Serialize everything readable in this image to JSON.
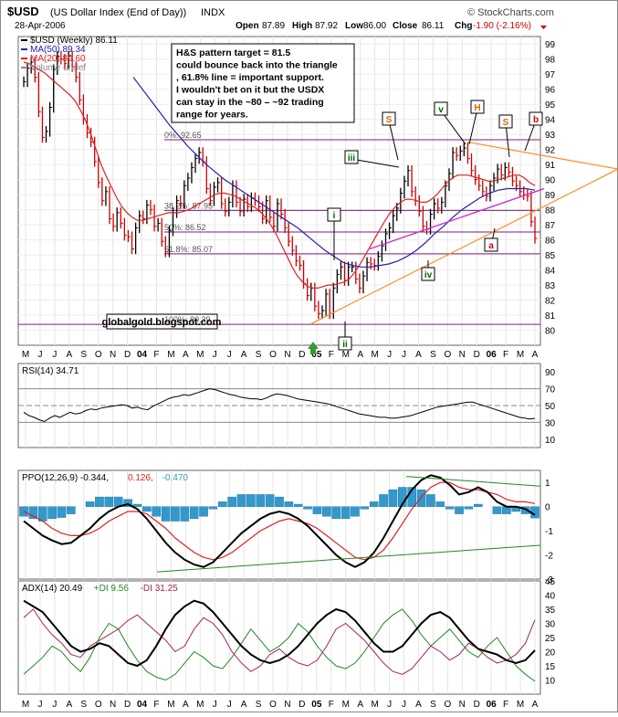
{
  "header": {
    "symbol": "$USD",
    "description": "(US Dollar Index (End of Day))",
    "exchange": "INDX",
    "date": "28-Apr-2006",
    "open_label": "Open",
    "open": "87.89",
    "high_label": "High",
    "high": "87.92",
    "low_label": "Low",
    "low": "86.00",
    "close_label": "Close",
    "close": "86.11",
    "chg_label": "Chg",
    "chg": "-1.90 (-2.16%)",
    "copyright": "© StockCharts.com"
  },
  "chart_data": [
    {
      "type": "line",
      "title": "$USD (Weekly) 86.11",
      "legend": [
        {
          "label": "$USD (Weekly) 86.11",
          "color": "#000000"
        },
        {
          "label": "MA(50) 89.34",
          "color": "#2222aa"
        },
        {
          "label": "MA(20) 89.60",
          "color": "#dd2222"
        },
        {
          "label": "Volume undef",
          "color": "#888888"
        }
      ],
      "ylim": [
        79,
        99.5
      ],
      "y_ticks": [
        80,
        81,
        82,
        83,
        84,
        85,
        86,
        87,
        88,
        89,
        90,
        91,
        92,
        93,
        94,
        95,
        96,
        97,
        98,
        99
      ],
      "x_ticks": [
        "M",
        "J",
        "J",
        "A",
        "S",
        "O",
        "N",
        "D",
        "04",
        "F",
        "M",
        "A",
        "M",
        "J",
        "J",
        "A",
        "S",
        "O",
        "N",
        "D",
        "05",
        "F",
        "M",
        "A",
        "M",
        "J",
        "J",
        "A",
        "S",
        "O",
        "N",
        "D",
        "06",
        "F",
        "M",
        "A"
      ],
      "annotation_box": [
        "H&S pattern target = 81.5",
        "could bounce back into the triangle",
        ", 61.8% line = important support.",
        "I wouldn't bet on it but the USDX",
        "can stay in the ~80 – ~92 trading",
        "range for years."
      ],
      "watermark": "globalgold.blogspot.com",
      "fib_levels": [
        {
          "label": "0%: 92.65",
          "value": 92.65
        },
        {
          "label": "38.2%: 87.95",
          "value": 87.95
        },
        {
          "label": "50%: 86.52",
          "value": 86.52
        },
        {
          "label": "61.8%: 85.07",
          "value": 85.07
        },
        {
          "label": "100%: 80.39",
          "value": 80.39
        }
      ],
      "wave_labels": [
        {
          "text": "i",
          "color": "#006600"
        },
        {
          "text": "ii",
          "color": "#006600"
        },
        {
          "text": "iii",
          "color": "#006600"
        },
        {
          "text": "iv",
          "color": "#006600"
        },
        {
          "text": "v",
          "color": "#006600"
        },
        {
          "text": "S",
          "color": "#dd6600"
        },
        {
          "text": "H",
          "color": "#dd6600"
        },
        {
          "text": "S",
          "color": "#dd6600"
        },
        {
          "text": "a",
          "color": "#cc0000"
        },
        {
          "text": "b",
          "color": "#cc0000"
        }
      ],
      "close_series": [
        96.5,
        97.4,
        97.8,
        96.8,
        94.5,
        92.8,
        93.2,
        94.8,
        97.3,
        98.2,
        98.0,
        97.7,
        98.2,
        97.5,
        96.8,
        95.3,
        94.0,
        93.1,
        92.5,
        91.2,
        89.8,
        88.6,
        89.2,
        87.4,
        86.9,
        87.8,
        87.1,
        86.3,
        86.2,
        85.4,
        86.8,
        87.6,
        87.4,
        88.3,
        88.0,
        86.9,
        87.1,
        85.9,
        85.2,
        86.6,
        87.8,
        88.6,
        88.4,
        89.6,
        90.1,
        90.8,
        91.4,
        91.8,
        91.2,
        89.4,
        88.6,
        89.5,
        89.8,
        88.4,
        87.9,
        88.5,
        89.6,
        88.5,
        87.9,
        88.7,
        88.2,
        88.8,
        88.6,
        88.2,
        87.4,
        88.6,
        87.5,
        86.9,
        88.4,
        87.7,
        86.8,
        85.9,
        85.3,
        84.6,
        84.3,
        83.1,
        82.3,
        82.8,
        81.6,
        81.1,
        81.3,
        82.4,
        81.1,
        82.8,
        83.7,
        84.2,
        83.3,
        84.2,
        84.2,
        83.4,
        82.8,
        83.6,
        84.5,
        84.4,
        84.3,
        84.9,
        85.6,
        86.4,
        86.8,
        87.6,
        88.1,
        89.1,
        89.9,
        90.6,
        89.2,
        88.6,
        87.9,
        86.9,
        86.7,
        87.7,
        88.4,
        88.1,
        88.5,
        89.6,
        90.4,
        91.8,
        91.6,
        91.9,
        92.1,
        91.4,
        90.6,
        90.0,
        89.6,
        89.2,
        88.9,
        89.6,
        90.1,
        90.7,
        90.3,
        90.8,
        90.5,
        89.9,
        89.6,
        89.2,
        89.0,
        88.9,
        87.2,
        86.1
      ],
      "ma20_series": [
        97.8,
        97.7,
        97.5,
        97.3,
        97.1,
        96.8,
        96.5,
        96.2,
        95.9,
        95.6,
        95.2,
        94.6,
        93.9,
        93.0,
        92.0,
        91.0,
        90.2,
        89.5,
        88.8,
        88.2,
        87.8,
        87.5,
        87.3,
        87.3,
        87.4,
        87.5,
        87.6,
        87.7,
        87.8,
        87.8,
        87.8,
        87.9,
        88.0,
        88.2,
        88.4,
        88.6,
        88.8,
        89.0,
        89.1,
        89.1,
        89.0,
        88.9,
        88.7,
        88.5,
        88.3,
        88.1,
        87.8,
        87.4,
        86.9,
        86.3,
        85.6,
        84.9,
        84.2,
        83.6,
        83.2,
        82.9,
        82.8,
        82.8,
        82.9,
        83.0,
        83.0,
        83.1,
        83.2,
        83.4,
        83.8,
        84.3,
        84.9,
        85.5,
        86.1,
        86.7,
        87.3,
        87.8,
        88.2,
        88.5,
        88.7,
        88.7,
        88.6,
        88.5,
        88.5,
        88.7,
        89.0,
        89.4,
        89.8,
        90.1,
        90.3,
        90.3,
        90.3,
        90.2,
        90.1,
        90.0,
        89.9,
        89.9,
        90.0,
        90.1,
        90.2,
        90.3,
        90.3,
        90.1,
        89.8,
        89.6
      ],
      "ma50_series": [
        96.8,
        96.0,
        95.2,
        94.4,
        93.6,
        92.9,
        92.2,
        91.6,
        91.0,
        90.5,
        90.0,
        89.6,
        89.2,
        88.8,
        88.4,
        88.0,
        87.6,
        87.2,
        86.8,
        86.3,
        85.8,
        85.3,
        84.9,
        84.5,
        84.3,
        84.2,
        84.2,
        84.3,
        84.4,
        84.6,
        84.9,
        85.3,
        85.8,
        86.4,
        86.9,
        87.5,
        88.0,
        88.4,
        88.8,
        89.1,
        89.3,
        89.4,
        89.4,
        89.4,
        89.3
      ]
    },
    {
      "type": "line",
      "title": "RSI(14) 34.71",
      "ylim": [
        0,
        100
      ],
      "y_ticks": [
        10,
        30,
        50,
        70,
        90
      ],
      "series": [
        {
          "name": "RSI(14) 34.71",
          "values": [
            42,
            38,
            36,
            33,
            31,
            35,
            38,
            36,
            39,
            42,
            40,
            41,
            44,
            46,
            45,
            47,
            48,
            49,
            50,
            51,
            50,
            47,
            48,
            46,
            45,
            49,
            52,
            55,
            58,
            60,
            61,
            63,
            62,
            64,
            66,
            68,
            70,
            69,
            67,
            65,
            63,
            62,
            60,
            59,
            58,
            58,
            57,
            59,
            62,
            64,
            63,
            62,
            60,
            58,
            57,
            56,
            55,
            54,
            53,
            52,
            50,
            48,
            46,
            44,
            42,
            40,
            39,
            38,
            37,
            36,
            36,
            35,
            35,
            36,
            37,
            38,
            40,
            42,
            44,
            46,
            48,
            49,
            50,
            51,
            52,
            53,
            54,
            54,
            52,
            50,
            48,
            46,
            44,
            42,
            40,
            38,
            36,
            35,
            34,
            34.71
          ]
        }
      ]
    },
    {
      "type": "bar",
      "title": "PPO(12,26,9) -0.344, 0.126, -0.470",
      "legend": [
        {
          "label": "PPO(12,26,9) -0.344",
          "color": "#000000"
        },
        {
          "label": "0.126",
          "color": "#dd2222"
        },
        {
          "label": "-0.470",
          "color": "#3399cc"
        }
      ],
      "ylim": [
        -3,
        1.5
      ],
      "y_ticks": [
        -3,
        -2,
        -1,
        0,
        1
      ],
      "ppo_series": [
        -0.6,
        -0.9,
        -1.2,
        -1.4,
        -1.55,
        -1.5,
        -1.2,
        -0.9,
        -0.5,
        -0.2,
        0.0,
        0.1,
        -0.1,
        -0.5,
        -1.0,
        -1.5,
        -1.9,
        -2.2,
        -2.4,
        -2.5,
        -2.3,
        -1.9,
        -1.5,
        -1.1,
        -0.8,
        -0.5,
        -0.3,
        -0.2,
        -0.3,
        -0.5,
        -0.8,
        -1.2,
        -1.6,
        -2.0,
        -2.3,
        -2.5,
        -2.3,
        -1.9,
        -1.3,
        -0.6,
        0.1,
        0.7,
        1.1,
        1.3,
        1.2,
        0.9,
        0.5,
        0.6,
        0.8,
        0.6,
        0.2,
        0.0,
        0.0,
        -0.1,
        -0.344
      ],
      "signal_series": [
        -0.2,
        -0.4,
        -0.6,
        -0.9,
        -1.1,
        -1.2,
        -1.2,
        -1.1,
        -0.9,
        -0.6,
        -0.4,
        -0.2,
        -0.2,
        -0.3,
        -0.6,
        -0.9,
        -1.3,
        -1.6,
        -1.9,
        -2.1,
        -2.2,
        -2.1,
        -1.9,
        -1.6,
        -1.3,
        -1.0,
        -0.8,
        -0.6,
        -0.5,
        -0.6,
        -0.7,
        -0.9,
        -1.2,
        -1.5,
        -1.8,
        -2.1,
        -2.2,
        -2.1,
        -1.8,
        -1.3,
        -0.7,
        -0.1,
        0.4,
        0.8,
        1.0,
        1.0,
        0.8,
        0.7,
        0.7,
        0.6,
        0.5,
        0.3,
        0.2,
        0.2,
        0.126
      ],
      "histogram": [
        -0.4,
        -0.5,
        -0.6,
        -0.5,
        -0.45,
        -0.3,
        0.0,
        0.2,
        0.4,
        0.4,
        0.4,
        0.3,
        0.1,
        -0.2,
        -0.4,
        -0.6,
        -0.6,
        -0.6,
        -0.5,
        -0.4,
        -0.1,
        0.2,
        0.4,
        0.5,
        0.5,
        0.5,
        0.5,
        0.4,
        0.2,
        0.1,
        -0.1,
        -0.3,
        -0.4,
        -0.5,
        -0.5,
        -0.4,
        -0.1,
        0.2,
        0.5,
        0.7,
        0.8,
        0.8,
        0.7,
        0.5,
        0.2,
        -0.1,
        -0.3,
        -0.1,
        0.1,
        0.0,
        -0.3,
        -0.3,
        -0.2,
        -0.3,
        -0.47
      ]
    },
    {
      "type": "line",
      "title": "ADX(14) 20.49 +DI 9.56 -DI 31.25",
      "legend": [
        {
          "label": "ADX(14) 20.49",
          "color": "#000000"
        },
        {
          "label": "+DI 9.56",
          "color": "#228822"
        },
        {
          "label": "-DI 31.25",
          "color": "#aa2255"
        }
      ],
      "ylim": [
        5,
        45
      ],
      "y_ticks": [
        10,
        15,
        20,
        25,
        30,
        35,
        40,
        45
      ],
      "series": [
        {
          "name": "ADX(14) 20.49",
          "values": [
            38,
            36,
            34,
            30,
            26,
            22,
            20,
            21,
            23,
            22,
            19,
            16,
            15,
            17,
            22,
            28,
            33,
            36,
            38,
            37,
            34,
            30,
            26,
            22,
            19,
            17,
            16,
            17,
            19,
            22,
            26,
            30,
            33,
            35,
            34,
            31,
            27,
            23,
            20,
            20,
            22,
            26,
            30,
            33,
            34,
            32,
            28,
            24,
            21,
            20,
            19,
            17,
            16,
            17,
            20.49
          ]
        },
        {
          "name": "+DI 9.56",
          "values": [
            12,
            15,
            18,
            22,
            20,
            16,
            13,
            18,
            25,
            30,
            28,
            22,
            17,
            13,
            11,
            10,
            12,
            16,
            20,
            18,
            15,
            14,
            18,
            23,
            28,
            24,
            20,
            22,
            25,
            30,
            27,
            22,
            18,
            15,
            14,
            16,
            20,
            25,
            30,
            33,
            35,
            31,
            26,
            22,
            25,
            28,
            24,
            20,
            18,
            22,
            25,
            20,
            15,
            12,
            9.56
          ]
        },
        {
          "name": "-DI 31.25",
          "values": [
            32,
            35,
            30,
            26,
            23,
            19,
            18,
            22,
            24,
            26,
            28,
            31,
            33,
            30,
            27,
            24,
            20,
            22,
            28,
            32,
            30,
            26,
            20,
            16,
            13,
            15,
            19,
            21,
            18,
            16,
            15,
            17,
            22,
            28,
            30,
            27,
            24,
            20,
            16,
            13,
            12,
            14,
            18,
            22,
            20,
            17,
            19,
            23,
            21,
            18,
            16,
            17,
            19,
            23,
            31.25
          ]
        }
      ]
    }
  ]
}
